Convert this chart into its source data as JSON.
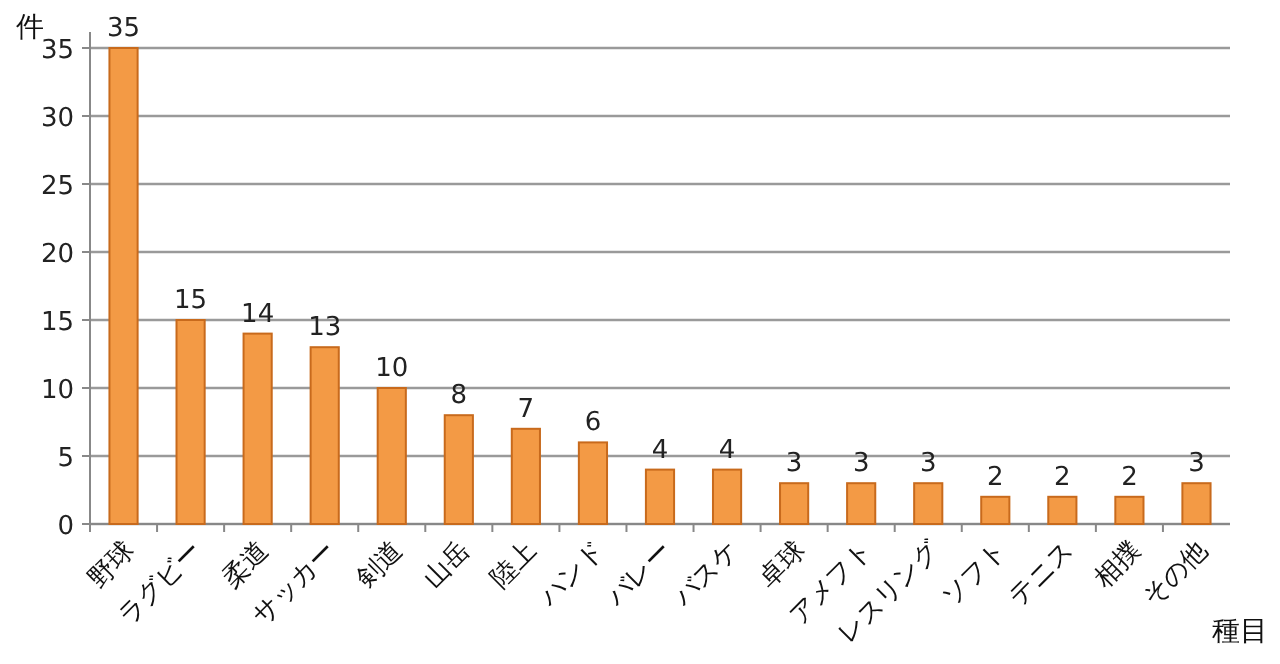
{
  "chart_data": {
    "type": "bar",
    "xlabel": "種目",
    "ylabel": "件",
    "categories": [
      "野球",
      "ラグビー",
      "柔道",
      "サッカー",
      "剣道",
      "山岳",
      "陸上",
      "ハンド",
      "バレー",
      "バスケ",
      "卓球",
      "アメフト",
      "レスリング",
      "ソフト",
      "テニス",
      "相撲",
      "その他"
    ],
    "values": [
      35,
      15,
      14,
      13,
      10,
      8,
      7,
      6,
      4,
      4,
      3,
      3,
      3,
      2,
      2,
      2,
      3
    ],
    "color": "#f39a45",
    "ylim": [
      0,
      35
    ],
    "yticks": [
      0,
      5,
      10,
      15,
      20,
      25,
      30,
      35
    ],
    "grid": "y",
    "data_labels": true
  }
}
